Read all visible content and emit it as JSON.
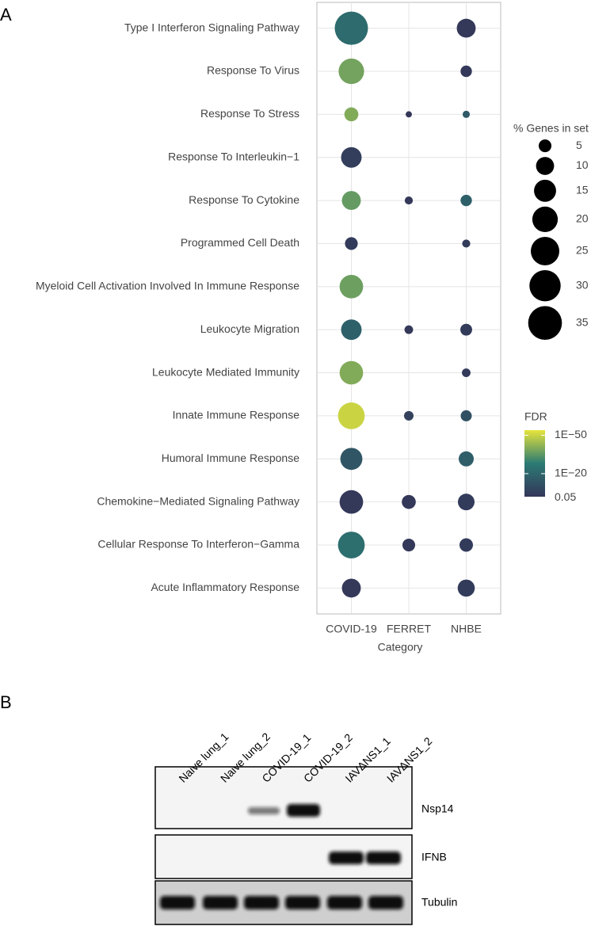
{
  "panels": [
    "A",
    "B"
  ],
  "chart_data": {
    "type": "dotplot",
    "y_categories": [
      "Type I Interferon Signaling Pathway",
      "Response To Virus",
      "Response To Stress",
      "Response To Interleukin−1",
      "Response To Cytokine",
      "Programmed Cell Death",
      "Myeloid Cell Activation Involved In Immune Response",
      "Leukocyte Migration",
      "Leukocyte Mediated Immunity",
      "Innate Immune Response",
      "Humoral Immune Response",
      "Chemokine−Mediated Signaling Pathway",
      "Cellular Response To Interferon−Gamma",
      "Acute Inflammatory Response"
    ],
    "x_label": "Category",
    "series": [
      {
        "name": "COVID-19",
        "sizes": [
          34,
          20,
          6,
          13,
          11,
          5,
          17,
          13,
          17,
          22,
          15,
          17,
          22,
          11
        ],
        "fdr": [
          1e-22,
          1e-38,
          1e-40,
          1e-05,
          1e-36,
          0.0001,
          1e-37,
          1e-18,
          1e-40,
          1e-50,
          1e-14,
          0.001,
          1e-23,
          0.001
        ]
      },
      {
        "name": "FERRET",
        "sizes": [
          null,
          null,
          1.2,
          null,
          2,
          null,
          null,
          2.3,
          null,
          2.8,
          null,
          6,
          5,
          null
        ],
        "fdr": [
          null,
          null,
          0.01,
          null,
          0.001,
          null,
          null,
          0.001,
          null,
          1e-06,
          null,
          0.001,
          0.001,
          null
        ]
      },
      {
        "name": "NHBE",
        "sizes": [
          11,
          4,
          1.6,
          null,
          4,
          2,
          null,
          4.3,
          2.3,
          3.8,
          7,
          8.5,
          5.6,
          9
        ],
        "fdr": [
          0.001,
          0.001,
          1e-15,
          null,
          1e-18,
          0.0001,
          null,
          0.0001,
          0.0001,
          1e-12,
          1e-17,
          0.0001,
          0.0001,
          0.0001
        ]
      }
    ],
    "size_legend": {
      "title": "% Genes in set",
      "values": [
        5,
        10,
        15,
        20,
        25,
        30,
        35
      ]
    },
    "color_legend": {
      "title": "FDR",
      "log_scale": true,
      "colorlim": [
        1e-54,
        0.01
      ],
      "ticks": [
        {
          "value": 1e-50,
          "label": "1E−50"
        },
        {
          "value": 1e-20,
          "label": "1E−20"
        },
        0.05
      ],
      "colormap": [
        "#343659",
        "#2b7b74",
        "#e7e43a"
      ]
    },
    "grid": true
  },
  "blot": {
    "lanes": [
      "Naive lung_1",
      "Naive lung_2",
      "COVID-19_1",
      "COVID-19_2",
      "IAVΔNS1_1",
      "IAVΔNS1_2"
    ],
    "rows": [
      "Nsp14",
      "IFNB",
      "Tubulin"
    ]
  }
}
